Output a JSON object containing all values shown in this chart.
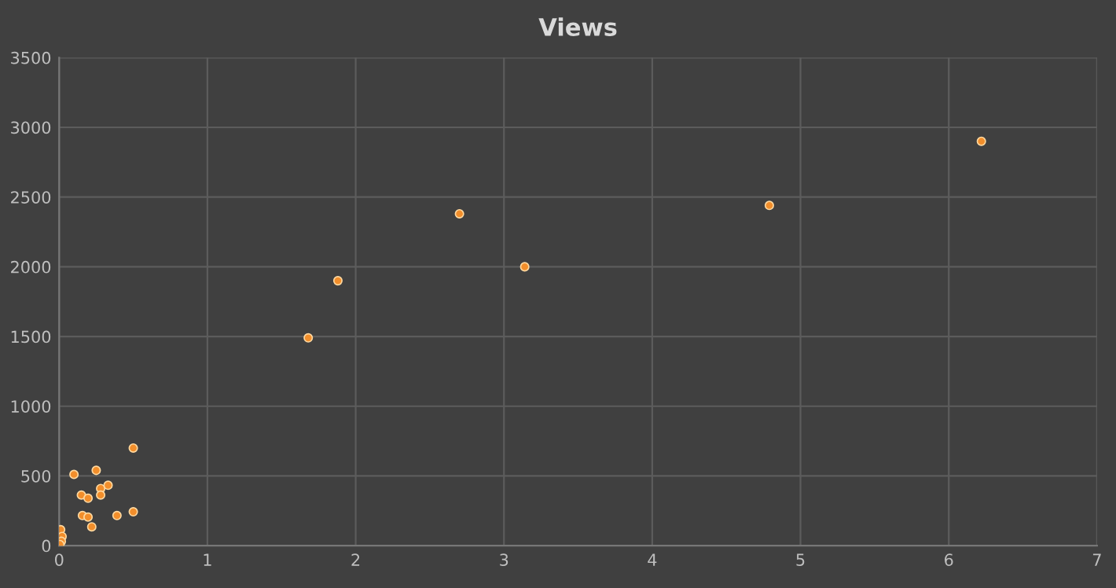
{
  "chart_data": {
    "type": "scatter",
    "title": "Views",
    "x": [
      0.1,
      0.25,
      0.5,
      0.15,
      0.195,
      0.28,
      0.28,
      0.33,
      0.157,
      0.195,
      0.22,
      0.39,
      0.5,
      0.01,
      0.02,
      0.015,
      0.005,
      1.68,
      1.88,
      2.7,
      3.14,
      4.79,
      6.22
    ],
    "values": [
      511,
      540,
      700,
      363,
      340,
      410,
      363,
      433,
      216,
      205,
      135,
      216,
      243,
      115,
      66,
      31,
      8,
      1490,
      1900,
      2380,
      2000,
      2440,
      2900
    ],
    "color": "#f28e2b",
    "marker": "circle",
    "xlim": [
      0,
      7
    ],
    "xticks": [
      0,
      1,
      2,
      3,
      4,
      5,
      6,
      7
    ],
    "ylim": [
      0,
      3500
    ],
    "yticks": [
      0,
      500,
      1000,
      1500,
      2000,
      2500,
      3000,
      3500
    ],
    "grid": true
  }
}
